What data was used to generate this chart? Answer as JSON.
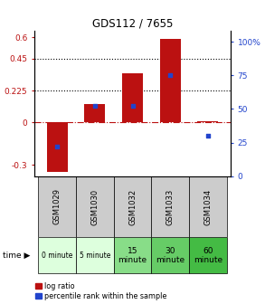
{
  "title": "GDS112 / 7655",
  "samples": [
    "GSM1029",
    "GSM1030",
    "GSM1032",
    "GSM1033",
    "GSM1034"
  ],
  "log_ratio": [
    -0.35,
    0.13,
    0.35,
    0.59,
    0.01
  ],
  "percentile": [
    22,
    52,
    52,
    75,
    30
  ],
  "time_labels": [
    "0 minute",
    "5 minute",
    "15\nminute",
    "30\nminute",
    "60\nminute"
  ],
  "time_colors": [
    "#ddffdd",
    "#ddffdd",
    "#88dd88",
    "#66cc66",
    "#44bb44"
  ],
  "bar_color": "#bb1111",
  "percentile_color": "#2244cc",
  "ylim_left": [
    -0.38,
    0.65
  ],
  "ylim_right": [
    0,
    108.33
  ],
  "yticks_left": [
    -0.3,
    0,
    0.225,
    0.45,
    0.6
  ],
  "ytick_labels_left": [
    "-0.3",
    "0",
    "0.225",
    "0.45",
    "0.6"
  ],
  "yticks_right": [
    0,
    25,
    50,
    75,
    100
  ],
  "ytick_labels_right": [
    "0",
    "25",
    "50",
    "75",
    "100%"
  ],
  "hlines": [
    0.225,
    0.45
  ],
  "sample_bg_color": "#cccccc",
  "bar_width": 0.55,
  "legend_log": "log ratio",
  "legend_pct": "percentile rank within the sample",
  "time_label": "time"
}
